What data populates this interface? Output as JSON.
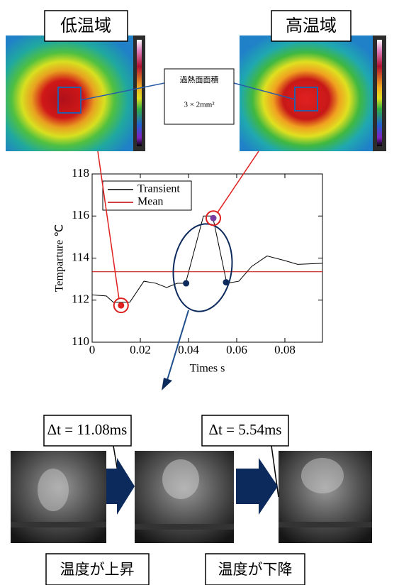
{
  "labels": {
    "cold": "低温域",
    "hot": "高温域",
    "area_title": "過熱面面積",
    "area_value": "3 × 2mm²",
    "dt1": "Δt = 11.08ms",
    "dt2": "Δt = 5.54ms",
    "rise": "温度が上昇",
    "fall": "温度が下降"
  },
  "chart_data": {
    "type": "line",
    "xlabel": "Times  s",
    "ylabel": "Temparture ℃",
    "xlim": [
      0,
      0.0956
    ],
    "xticks": [
      0,
      0.02,
      0.04,
      0.06,
      0.08
    ],
    "ylim": [
      110,
      118
    ],
    "yticks": [
      110,
      112,
      114,
      116,
      118
    ],
    "series": [
      {
        "name": "Transient",
        "color": "#000000",
        "x": [
          0,
          0.0059,
          0.0088,
          0.0118,
          0.0156,
          0.0168,
          0.0215,
          0.0265,
          0.0309,
          0.0353,
          0.0388,
          0.0462,
          0.05,
          0.0559,
          0.0609,
          0.0662,
          0.0726,
          0.0794,
          0.0853,
          0.0956
        ],
        "values": [
          112.25,
          112.2,
          111.9,
          111.9,
          111.9,
          112.1,
          112.9,
          112.8,
          112.6,
          112.8,
          112.8,
          116.0,
          116.0,
          112.8,
          112.9,
          113.6,
          114.1,
          113.9,
          113.7,
          113.75
        ]
      },
      {
        "name": "Mean",
        "color": "#c00000",
        "x": [
          0,
          0.0956
        ],
        "values": [
          113.35,
          113.35
        ]
      }
    ],
    "markers": {
      "x": [
        0.012,
        0.039,
        0.0503,
        0.0556
      ],
      "values": [
        111.75,
        112.8,
        115.9,
        112.85
      ],
      "colors": [
        "#e02020",
        "#0d2a5c",
        "#7a3ea0",
        "#0d2a5c"
      ],
      "ringed": [
        true,
        false,
        true,
        false
      ]
    }
  }
}
